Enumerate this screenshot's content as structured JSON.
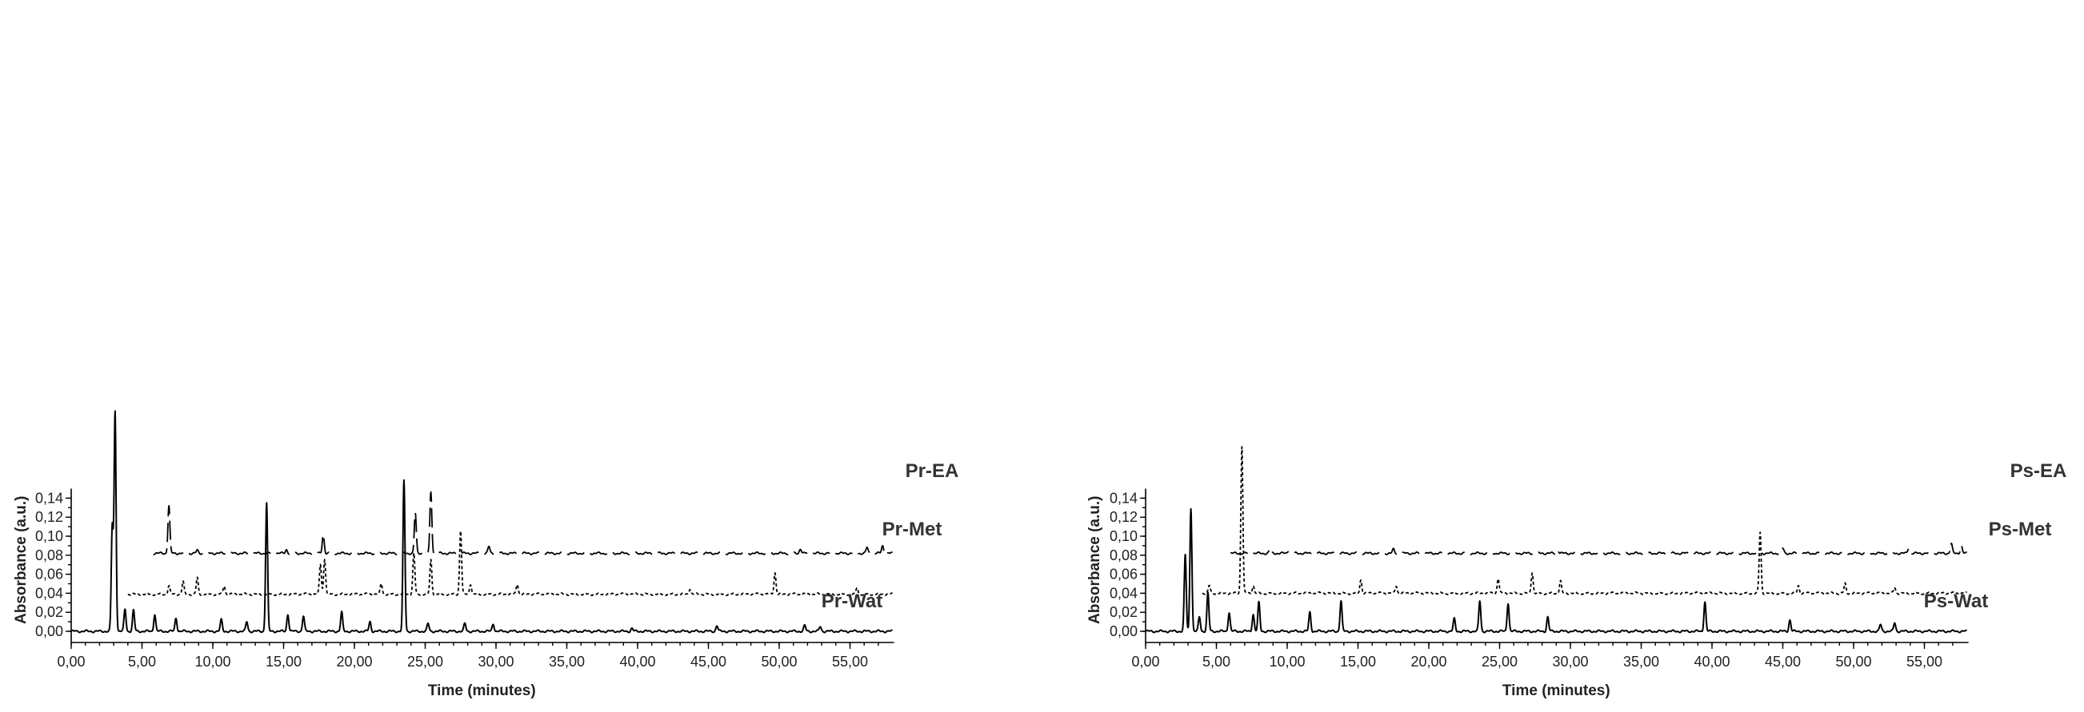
{
  "chart_data": [
    {
      "type": "line",
      "title": "",
      "xlabel": "Time (minutes)",
      "ylabel": "Absorbance (a.u.)",
      "xlim": [
        0,
        58
      ],
      "ylim": [
        0,
        0.15
      ],
      "xticks": [
        "0,00",
        "5,00",
        "10,00",
        "15,00",
        "20,00",
        "25,00",
        "30,00",
        "35,00",
        "40,00",
        "45,00",
        "50,00",
        "55,00"
      ],
      "yticks": [
        "0,00",
        "0,02",
        "0,04",
        "0,06",
        "0,08",
        "0,10",
        "0,12",
        "0,14"
      ],
      "grid": false,
      "legend": "labels next to traces",
      "series": [
        {
          "name": "Pr-EA",
          "line_style": "long-dash",
          "start": 5.8,
          "end": 58,
          "baseline": 0.082,
          "peaks": [
            [
              6.9,
              0.132
            ],
            [
              8.9,
              0.085
            ],
            [
              15.2,
              0.086
            ],
            [
              17.8,
              0.102
            ],
            [
              24.3,
              0.124
            ],
            [
              25.4,
              0.146
            ],
            [
              29.5,
              0.089
            ],
            [
              51.5,
              0.087
            ],
            [
              56.2,
              0.088
            ],
            [
              57.3,
              0.09
            ]
          ]
        },
        {
          "name": "Pr-Met",
          "line_style": "short-dash",
          "start": 4.0,
          "end": 58,
          "baseline": 0.039,
          "peaks": [
            [
              6.9,
              0.048
            ],
            [
              7.9,
              0.052
            ],
            [
              8.9,
              0.056
            ],
            [
              10.8,
              0.048
            ],
            [
              17.6,
              0.07
            ],
            [
              17.9,
              0.076
            ],
            [
              21.9,
              0.05
            ],
            [
              24.2,
              0.082
            ],
            [
              25.4,
              0.075
            ],
            [
              27.5,
              0.106
            ],
            [
              28.2,
              0.05
            ],
            [
              31.5,
              0.05
            ],
            [
              43.7,
              0.045
            ],
            [
              49.7,
              0.062
            ],
            [
              55.5,
              0.046
            ]
          ]
        },
        {
          "name": "Pr-Wat",
          "line_style": "solid",
          "start": 0,
          "end": 58,
          "baseline": 0.0,
          "peaks": [
            [
              2.9,
              0.11
            ],
            [
              3.1,
              0.23
            ],
            [
              3.8,
              0.023
            ],
            [
              4.4,
              0.022
            ],
            [
              5.9,
              0.018
            ],
            [
              7.4,
              0.014
            ],
            [
              10.6,
              0.012
            ],
            [
              12.4,
              0.01
            ],
            [
              13.8,
              0.135
            ],
            [
              15.3,
              0.018
            ],
            [
              16.4,
              0.016
            ],
            [
              19.1,
              0.02
            ],
            [
              21.1,
              0.01
            ],
            [
              23.5,
              0.158
            ],
            [
              25.2,
              0.008
            ],
            [
              27.8,
              0.008
            ],
            [
              29.8,
              0.008
            ],
            [
              39.6,
              0.003
            ],
            [
              45.6,
              0.006
            ],
            [
              51.8,
              0.006
            ],
            [
              52.9,
              0.005
            ]
          ]
        }
      ]
    },
    {
      "type": "line",
      "title": "",
      "xlabel": "Time (minutes)",
      "ylabel": "Absorbance (a.u.)",
      "xlim": [
        0,
        58
      ],
      "ylim": [
        0,
        0.15
      ],
      "xticks": [
        "0,00",
        "5,00",
        "10,00",
        "15,00",
        "20,00",
        "25,00",
        "30,00",
        "35,00",
        "40,00",
        "45,00",
        "50,00",
        "55,00"
      ],
      "yticks": [
        "0,00",
        "0,02",
        "0,04",
        "0,06",
        "0,08",
        "0,10",
        "0,12",
        "0,14"
      ],
      "grid": false,
      "legend": "labels next to traces",
      "series": [
        {
          "name": "Ps-EA",
          "line_style": "long-dash",
          "start": 6.0,
          "end": 58,
          "baseline": 0.082,
          "peaks": [
            [
              8.8,
              0.087
            ],
            [
              10.1,
              0.085
            ],
            [
              17.5,
              0.086
            ],
            [
              29.1,
              0.086
            ],
            [
              45.0,
              0.087
            ],
            [
              53.9,
              0.088
            ],
            [
              56.9,
              0.092
            ],
            [
              57.6,
              0.09
            ]
          ]
        },
        {
          "name": "Ps-Met",
          "line_style": "short-dash",
          "start": 4.0,
          "end": 58,
          "baseline": 0.04,
          "peaks": [
            [
              4.5,
              0.048
            ],
            [
              6.8,
              0.195
            ],
            [
              7.6,
              0.048
            ],
            [
              15.2,
              0.054
            ],
            [
              17.7,
              0.048
            ],
            [
              24.9,
              0.056
            ],
            [
              27.3,
              0.062
            ],
            [
              29.3,
              0.053
            ],
            [
              43.4,
              0.104
            ],
            [
              46.1,
              0.048
            ],
            [
              49.4,
              0.05
            ],
            [
              52.9,
              0.046
            ]
          ]
        },
        {
          "name": "Ps-Wat",
          "line_style": "solid",
          "start": 0,
          "end": 58,
          "baseline": 0.0,
          "peaks": [
            [
              2.8,
              0.08
            ],
            [
              3.2,
              0.13
            ],
            [
              3.8,
              0.015
            ],
            [
              4.4,
              0.04
            ],
            [
              5.9,
              0.02
            ],
            [
              7.6,
              0.018
            ],
            [
              8.0,
              0.03
            ],
            [
              11.6,
              0.02
            ],
            [
              13.8,
              0.032
            ],
            [
              21.8,
              0.013
            ],
            [
              23.6,
              0.032
            ],
            [
              25.6,
              0.03
            ],
            [
              28.4,
              0.015
            ],
            [
              39.5,
              0.031
            ],
            [
              45.5,
              0.012
            ],
            [
              51.9,
              0.007
            ],
            [
              52.9,
              0.009
            ]
          ]
        }
      ]
    }
  ]
}
